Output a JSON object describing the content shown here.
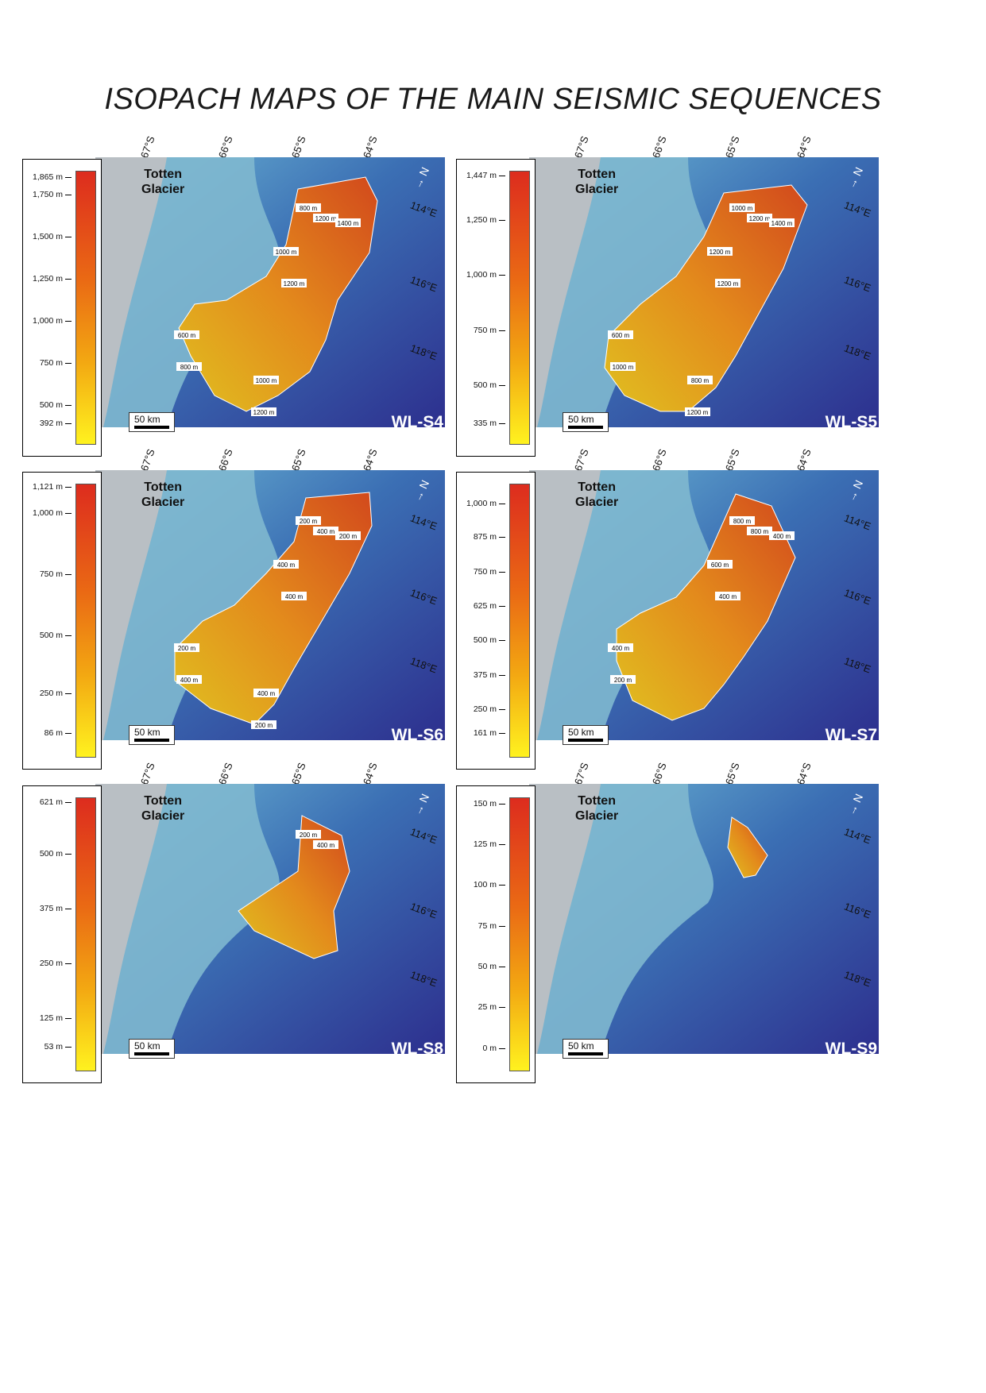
{
  "title": "ISOPACH MAPS OF THE MAIN SEISMIC SEQUENCES",
  "lat_labels": [
    "67°S",
    "66°S",
    "65°S",
    "64°S"
  ],
  "lon_labels": [
    "114°E",
    "116°E",
    "118°E"
  ],
  "place_line1": "Totten",
  "place_line2": "Glacier",
  "scale_label": "50 km",
  "north_label": "N",
  "panels": [
    {
      "name": "WL-S4",
      "ticks": [
        "1,865 m",
        "1,750 m",
        "1,500 m",
        "1,250 m",
        "1,000 m",
        "750 m",
        "500 m",
        "392 m"
      ],
      "contours": [
        "800 m",
        "1200 m",
        "1400 m",
        "1000 m",
        "1200 m",
        "600 m",
        "800 m",
        "1000 m",
        "1200 m"
      ]
    },
    {
      "name": "WL-S5",
      "ticks": [
        "1,447 m",
        "1,250 m",
        "1,000 m",
        "750 m",
        "500 m",
        "335 m"
      ],
      "contours": [
        "1000 m",
        "1200 m",
        "1400 m",
        "1200 m",
        "1200 m",
        "600 m",
        "1000 m",
        "800 m",
        "1200 m"
      ]
    },
    {
      "name": "WL-S6",
      "ticks": [
        "1,121 m",
        "1,000 m",
        "750 m",
        "500 m",
        "250 m",
        "86 m"
      ],
      "contours": [
        "200 m",
        "400 m",
        "200 m",
        "400 m",
        "400 m",
        "200 m",
        "400 m",
        "400 m",
        "200 m"
      ]
    },
    {
      "name": "WL-S7",
      "ticks": [
        "1,000 m",
        "875 m",
        "750 m",
        "625 m",
        "500 m",
        "375 m",
        "250 m",
        "161 m"
      ],
      "contours": [
        "800 m",
        "800 m",
        "400 m",
        "600 m",
        "400 m",
        "400 m",
        "200 m"
      ]
    },
    {
      "name": "WL-S8",
      "ticks": [
        "621 m",
        "500 m",
        "375 m",
        "250 m",
        "125 m",
        "53 m"
      ],
      "contours": [
        "200 m",
        "400 m"
      ]
    },
    {
      "name": "WL-S9",
      "ticks": [
        "150 m",
        "125 m",
        "100 m",
        "75 m",
        "50 m",
        "25 m",
        "0 m"
      ],
      "contours": []
    }
  ],
  "colors": {
    "ocean": "#2d2f8e",
    "shelf": "#7fb8cf",
    "land": "#b9bfc4",
    "high": "#dd2c1e",
    "low": "#fff21f"
  }
}
